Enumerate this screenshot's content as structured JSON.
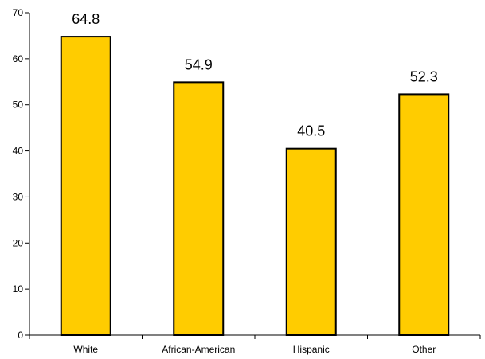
{
  "chart_data": {
    "type": "bar",
    "categories": [
      "White",
      "African-American",
      "Hispanic",
      "Other"
    ],
    "values": [
      64.8,
      54.9,
      40.5,
      52.3
    ],
    "data_labels": [
      "64.8",
      "54.9",
      "40.5",
      "52.3"
    ],
    "y_ticks": [
      0,
      10,
      20,
      30,
      40,
      50,
      60,
      70
    ],
    "ylim": [
      0,
      70
    ],
    "title": "",
    "xlabel": "",
    "ylabel": "",
    "grid": false,
    "legend": "none",
    "colors": {
      "bar_fill": "#FFCC00",
      "bar_stroke": "#000000",
      "axis": "#000000",
      "text": "#000000"
    }
  }
}
